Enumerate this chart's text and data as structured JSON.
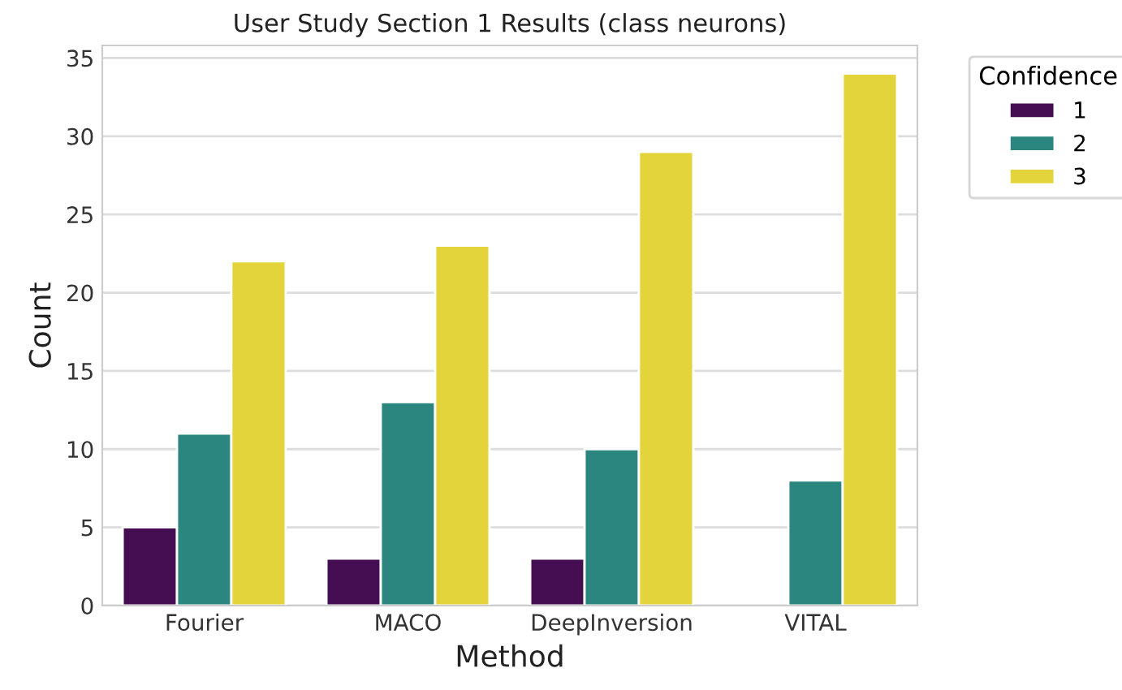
{
  "chart_data": {
    "type": "bar",
    "title": "User Study Section 1 Results (class neurons)",
    "xlabel": "Method",
    "ylabel": "Count",
    "legend_title": "Confidence",
    "categories": [
      "Fourier",
      "MACO",
      "DeepInversion",
      "VITAL"
    ],
    "series": [
      {
        "name": "1",
        "color": "#450d52",
        "values": [
          5,
          3,
          3,
          null
        ]
      },
      {
        "name": "2",
        "color": "#2b8680",
        "values": [
          11,
          13,
          10,
          8
        ]
      },
      {
        "name": "3",
        "color": "#e4d43c",
        "values": [
          22,
          23,
          29,
          34
        ]
      }
    ],
    "ylim": [
      0,
      35.8
    ],
    "yticks": [
      0,
      5,
      10,
      15,
      20,
      25,
      30,
      35
    ],
    "grid": "y",
    "legend": "top right"
  }
}
